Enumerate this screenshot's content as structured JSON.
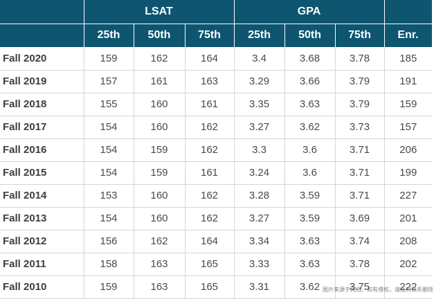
{
  "table": {
    "groups": [
      {
        "label": ""
      },
      {
        "label": "LSAT"
      },
      {
        "label": "GPA"
      },
      {
        "label": ""
      }
    ],
    "subheaders": [
      "",
      "25th",
      "50th",
      "75th",
      "25th",
      "50th",
      "75th",
      "Enr."
    ],
    "rows": [
      {
        "year": "Fall 2020",
        "lsat25": "159",
        "lsat50": "162",
        "lsat75": "164",
        "gpa25": "3.4",
        "gpa50": "3.68",
        "gpa75": "3.78",
        "enr": "185"
      },
      {
        "year": "Fall 2019",
        "lsat25": "157",
        "lsat50": "161",
        "lsat75": "163",
        "gpa25": "3.29",
        "gpa50": "3.66",
        "gpa75": "3.79",
        "enr": "191"
      },
      {
        "year": "Fall 2018",
        "lsat25": "155",
        "lsat50": "160",
        "lsat75": "161",
        "gpa25": "3.35",
        "gpa50": "3.63",
        "gpa75": "3.79",
        "enr": "159"
      },
      {
        "year": "Fall 2017",
        "lsat25": "154",
        "lsat50": "160",
        "lsat75": "162",
        "gpa25": "3.27",
        "gpa50": "3.62",
        "gpa75": "3.73",
        "enr": "157"
      },
      {
        "year": "Fall 2016",
        "lsat25": "154",
        "lsat50": "159",
        "lsat75": "162",
        "gpa25": "3.3",
        "gpa50": "3.6",
        "gpa75": "3.71",
        "enr": "206"
      },
      {
        "year": "Fall 2015",
        "lsat25": "154",
        "lsat50": "159",
        "lsat75": "161",
        "gpa25": "3.24",
        "gpa50": "3.6",
        "gpa75": "3.71",
        "enr": "199"
      },
      {
        "year": "Fall 2014",
        "lsat25": "153",
        "lsat50": "160",
        "lsat75": "162",
        "gpa25": "3.28",
        "gpa50": "3.59",
        "gpa75": "3.71",
        "enr": "227"
      },
      {
        "year": "Fall 2013",
        "lsat25": "154",
        "lsat50": "160",
        "lsat75": "162",
        "gpa25": "3.27",
        "gpa50": "3.59",
        "gpa75": "3.69",
        "enr": "201"
      },
      {
        "year": "Fall 2012",
        "lsat25": "156",
        "lsat50": "162",
        "lsat75": "164",
        "gpa25": "3.34",
        "gpa50": "3.63",
        "gpa75": "3.74",
        "enr": "208"
      },
      {
        "year": "Fall 2011",
        "lsat25": "158",
        "lsat50": "163",
        "lsat75": "165",
        "gpa25": "3.33",
        "gpa50": "3.63",
        "gpa75": "3.78",
        "enr": "202"
      },
      {
        "year": "Fall 2010",
        "lsat25": "159",
        "lsat50": "163",
        "lsat75": "165",
        "gpa25": "3.31",
        "gpa50": "3.62",
        "gpa75": "3.75",
        "enr": "222"
      }
    ]
  },
  "watermark": {
    "text": "图片来源于网络，如有侵权，请及时联系删除"
  },
  "colors": {
    "header_bg": "#0e5570",
    "header_text": "#ffffff",
    "cell_text": "#444a4f",
    "grid_line": "#d4d4d4"
  }
}
